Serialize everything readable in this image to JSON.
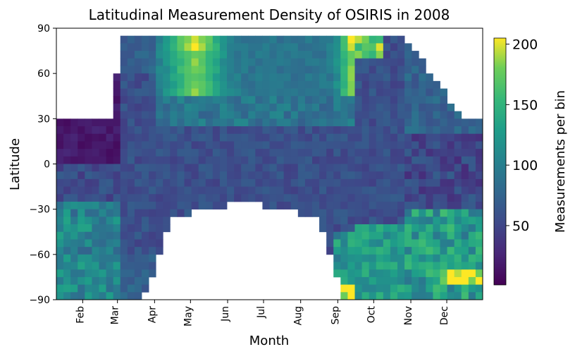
{
  "chart_data": {
    "type": "heatmap",
    "title": "Latitudinal Measurement Density of OSIRIS in 2008",
    "xlabel": "Month",
    "ylabel": "Latitude",
    "colorbar_label": "Measurements per bin",
    "colormap": "viridis",
    "x_ticks": [
      "Feb",
      "Mar",
      "Apr",
      "May",
      "Jun",
      "Jul",
      "Aug",
      "Sep",
      "Oct",
      "Nov",
      "Dec"
    ],
    "y_ticks": [
      90,
      60,
      30,
      0,
      -30,
      -60,
      -90
    ],
    "ylim": [
      -90,
      90
    ],
    "colorbar_ticks": [
      50,
      100,
      150,
      200
    ],
    "colorbar_range": [
      1,
      205
    ],
    "x_start": "2008-01-10",
    "x_end": "2008-12-31",
    "time_bins": 60,
    "lat_bins": 36,
    "coverage_notes": [
      "No measurements north of about 30 degrees before early March and after mid-December",
      "No measurements south of about -30 degrees from mid-April to early September",
      "Highest densities (~200) near the North Pole in April-May and September-October and near -75 degrees in December"
    ]
  }
}
